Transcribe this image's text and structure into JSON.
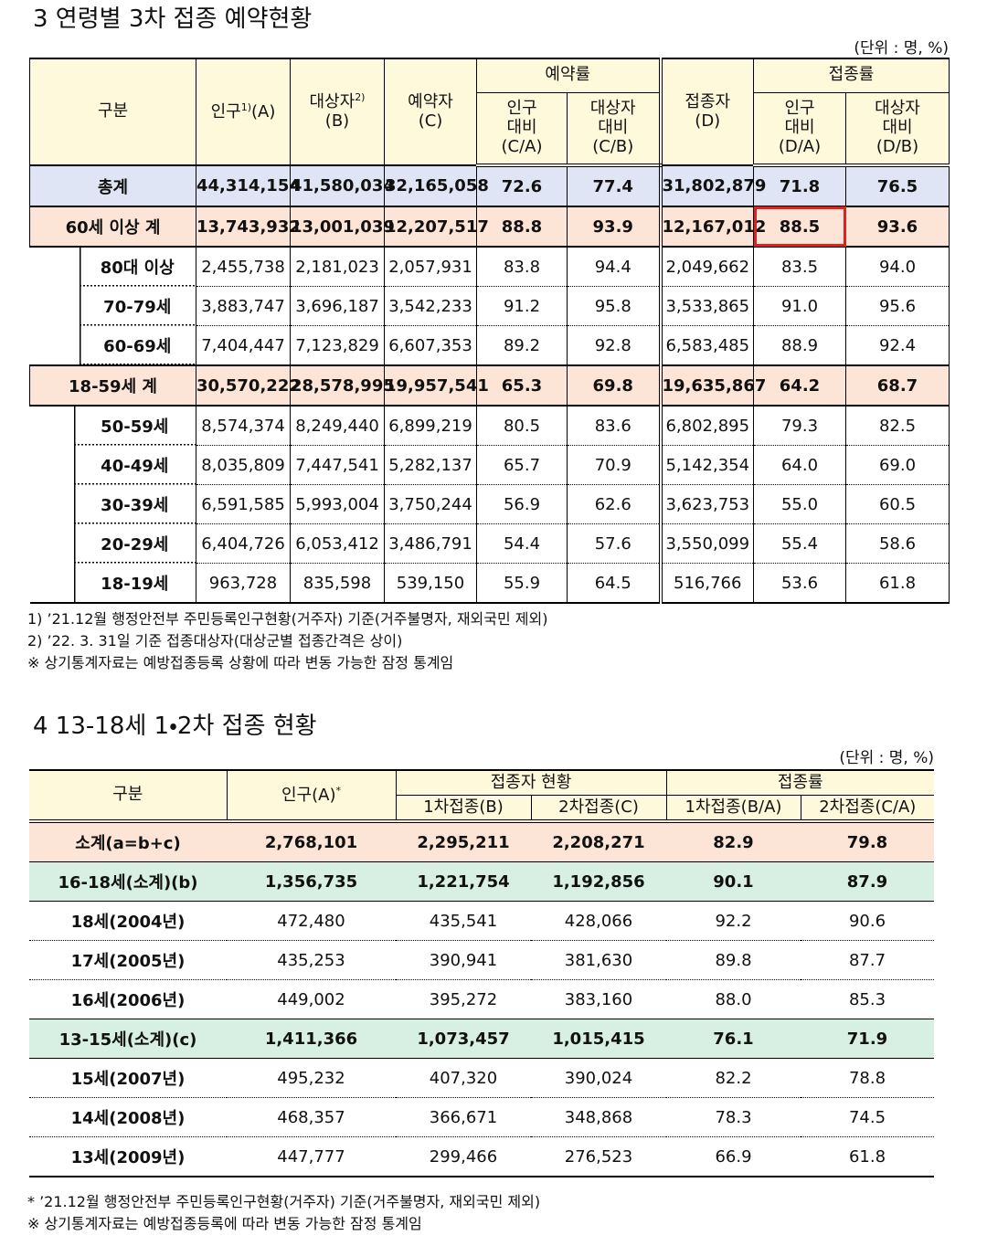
{
  "section3": {
    "title": "3 연령별 3차 접종 예약현황",
    "unit": "(단위 : 명, %)",
    "header": {
      "category": "구분",
      "population": {
        "label": "인구",
        "note": "1)",
        "code": "(A)"
      },
      "target": {
        "label": "대상자",
        "note": "2)",
        "code": "(B)"
      },
      "reserved": [
        "예약자",
        "(C)"
      ],
      "reservation_rate": {
        "label": "예약률",
        "columns": [
          [
            "인구",
            "대비",
            "(C/A)"
          ],
          [
            "대상자",
            "대비",
            "(C/B)"
          ]
        ]
      },
      "vaccinated": [
        "접종자",
        "(D)"
      ],
      "vaccination_rate": {
        "label": "접종률",
        "columns": [
          [
            "인구",
            "대비",
            "(D/A)"
          ],
          [
            "대상자",
            "대비",
            "(D/B)"
          ]
        ]
      }
    },
    "rows": [
      {
        "label": "총계",
        "values": [
          "44,314,154",
          "41,580,034",
          "32,165,058",
          "72.6",
          "77.4",
          "31,802,879",
          "71.8",
          "76.5"
        ]
      },
      {
        "label": "60세 이상 계",
        "values": [
          "13,743,932",
          "13,001,039",
          "12,207,517",
          "88.8",
          "93.9",
          "12,167,012",
          "88.5",
          "93.6"
        ]
      },
      {
        "label": "80대 이상",
        "values": [
          "2,455,738",
          "2,181,023",
          "2,057,931",
          "83.8",
          "94.4",
          "2,049,662",
          "83.5",
          "94.0"
        ]
      },
      {
        "label": "70-79세",
        "values": [
          "3,883,747",
          "3,696,187",
          "3,542,233",
          "91.2",
          "95.8",
          "3,533,865",
          "91.0",
          "95.6"
        ]
      },
      {
        "label": "60-69세",
        "values": [
          "7,404,447",
          "7,123,829",
          "6,607,353",
          "89.2",
          "92.8",
          "6,583,485",
          "88.9",
          "92.4"
        ]
      },
      {
        "label": "18-59세 계",
        "values": [
          "30,570,222",
          "28,578,995",
          "19,957,541",
          "65.3",
          "69.8",
          "19,635,867",
          "64.2",
          "68.7"
        ]
      },
      {
        "label": "50-59세",
        "values": [
          "8,574,374",
          "8,249,440",
          "6,899,219",
          "80.5",
          "83.6",
          "6,802,895",
          "79.3",
          "82.5"
        ]
      },
      {
        "label": "40-49세",
        "values": [
          "8,035,809",
          "7,447,541",
          "5,282,137",
          "65.7",
          "70.9",
          "5,142,354",
          "64.0",
          "69.0"
        ]
      },
      {
        "label": "30-39세",
        "values": [
          "6,591,585",
          "5,993,004",
          "3,750,244",
          "56.9",
          "62.6",
          "3,623,753",
          "55.0",
          "60.5"
        ]
      },
      {
        "label": "20-29세",
        "values": [
          "6,404,726",
          "6,053,412",
          "3,486,791",
          "54.4",
          "57.6",
          "3,550,099",
          "55.4",
          "58.6"
        ]
      },
      {
        "label": "18-19세",
        "values": [
          "963,728",
          "835,598",
          "539,150",
          "55.9",
          "64.5",
          "516,766",
          "53.6",
          "61.8"
        ]
      }
    ],
    "notes": [
      "1) ’21.12월 행정안전부 주민등록인구현황(거주자) 기준(거주불명자, 재외국민 제외)",
      "2) ’22. 3. 31일 기준 접종대상자(대상군별 접종간격은 상이)",
      "※ 상기통계자료는 예방접종등록 상황에 따라 변동 가능한 잠정 통계임"
    ]
  },
  "section4": {
    "title": "4 13-18세 1・2차 접종 현황",
    "unit": "(단위 : 명, %)",
    "header": {
      "category": "구분",
      "population": {
        "label": "인구(A)",
        "note": "*"
      },
      "vaccinated": {
        "label": "접종자 현황",
        "columns": [
          "1차접종(B)",
          "2차접종(C)"
        ]
      },
      "rate": {
        "label": "접종률",
        "columns": [
          "1차접종(B/A)",
          "2차접종(C/A)"
        ]
      }
    },
    "rows": [
      {
        "label": "소계(a=b+c)",
        "values": [
          "2,768,101",
          "2,295,211",
          "2,208,271",
          "82.9",
          "79.8"
        ]
      },
      {
        "label": "16-18세(소계)(b)",
        "values": [
          "1,356,735",
          "1,221,754",
          "1,192,856",
          "90.1",
          "87.9"
        ]
      },
      {
        "label": "18세(2004년)",
        "values": [
          "472,480",
          "435,541",
          "428,066",
          "92.2",
          "90.6"
        ]
      },
      {
        "label": "17세(2005년)",
        "values": [
          "435,253",
          "390,941",
          "381,630",
          "89.8",
          "87.7"
        ]
      },
      {
        "label": "16세(2006년)",
        "values": [
          "449,002",
          "395,272",
          "383,160",
          "88.0",
          "85.3"
        ]
      },
      {
        "label": "13-15세(소계)(c)",
        "values": [
          "1,411,366",
          "1,073,457",
          "1,015,415",
          "76.1",
          "71.9"
        ]
      },
      {
        "label": "15세(2007년)",
        "values": [
          "495,232",
          "407,320",
          "390,024",
          "82.2",
          "78.8"
        ]
      },
      {
        "label": "14세(2008년)",
        "values": [
          "468,357",
          "366,671",
          "348,868",
          "78.3",
          "74.5"
        ]
      },
      {
        "label": "13세(2009년)",
        "values": [
          "447,777",
          "299,466",
          "276,523",
          "66.9",
          "61.8"
        ]
      }
    ],
    "notes": [
      "* ’21.12월 행정안전부 주민등록인구현황(거주자) 기준(거주불명자, 재외국민 제외)",
      "※ 상기통계자료는 예방접종등록에 따라 변동 가능한 잠정 통계임"
    ]
  }
}
